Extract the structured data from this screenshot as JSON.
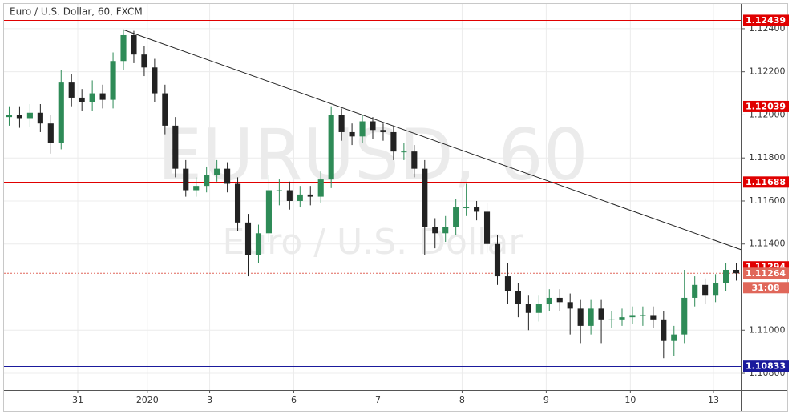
{
  "chart_data": {
    "type": "candlestick",
    "title": "Euro / U.S. Dollar, 60, FXCM",
    "watermark": "EURUSD, 60",
    "watermark_subtitle": "Euro / U.S. Dollar",
    "up_color": "#2e8b57",
    "down_color": "#222222",
    "grid": true,
    "xlim": [
      0,
      71
    ],
    "xticks": [
      {
        "value": 7.1,
        "label": "31"
      },
      {
        "value": 13.8,
        "label": "2020"
      },
      {
        "value": 19.8,
        "label": "3"
      },
      {
        "value": 27.9,
        "label": "6"
      },
      {
        "value": 36.0,
        "label": "7"
      },
      {
        "value": 44.1,
        "label": "8"
      },
      {
        "value": 52.2,
        "label": "9"
      },
      {
        "value": 60.3,
        "label": "10"
      },
      {
        "value": 68.3,
        "label": "13"
      }
    ],
    "ylim": [
      1.10722,
      1.12515
    ],
    "yticks": [
      {
        "value": 1.124,
        "label": "1.12400"
      },
      {
        "value": 1.122,
        "label": "1.12200"
      },
      {
        "value": 1.12,
        "label": "1.12000"
      },
      {
        "value": 1.118,
        "label": "1.11800"
      },
      {
        "value": 1.116,
        "label": "1.11600"
      },
      {
        "value": 1.114,
        "label": "1.11400"
      },
      {
        "value": 1.11,
        "label": "1.11000"
      },
      {
        "value": 1.108,
        "label": "1.10800"
      }
    ],
    "ohlc": [
      [
        1.1199,
        1.1204,
        1.1195,
        1.12
      ],
      [
        1.12,
        1.1204,
        1.1194,
        1.11985
      ],
      [
        1.11985,
        1.1205,
        1.11945,
        1.1201
      ],
      [
        1.1201,
        1.1205,
        1.1192,
        1.1196
      ],
      [
        1.1196,
        1.12,
        1.1182,
        1.1187
      ],
      [
        1.1187,
        1.1221,
        1.1184,
        1.1215
      ],
      [
        1.1215,
        1.1219,
        1.1204,
        1.1208
      ],
      [
        1.1208,
        1.1212,
        1.1202,
        1.1206
      ],
      [
        1.1206,
        1.1216,
        1.1202,
        1.121
      ],
      [
        1.121,
        1.1214,
        1.1203,
        1.1207
      ],
      [
        1.1207,
        1.1229,
        1.1203,
        1.1225
      ],
      [
        1.1225,
        1.12395,
        1.1221,
        1.1237
      ],
      [
        1.1237,
        1.1239,
        1.1224,
        1.1228
      ],
      [
        1.1228,
        1.1232,
        1.1218,
        1.1222
      ],
      [
        1.1222,
        1.1226,
        1.1206,
        1.121
      ],
      [
        1.121,
        1.1214,
        1.1191,
        1.1195
      ],
      [
        1.1195,
        1.1199,
        1.1171,
        1.1175
      ],
      [
        1.1175,
        1.1179,
        1.1162,
        1.1165
      ],
      [
        1.1165,
        1.1171,
        1.1162,
        1.1167
      ],
      [
        1.1167,
        1.1176,
        1.1164,
        1.1172
      ],
      [
        1.1172,
        1.1179,
        1.1169,
        1.1175
      ],
      [
        1.1175,
        1.1178,
        1.1164,
        1.1168
      ],
      [
        1.1168,
        1.1171,
        1.1146,
        1.115
      ],
      [
        1.115,
        1.1154,
        1.1125,
        1.1135
      ],
      [
        1.1135,
        1.1149,
        1.1131,
        1.1145
      ],
      [
        1.1145,
        1.1172,
        1.1141,
        1.1165
      ],
      [
        1.1165,
        1.117,
        1.1158,
        1.1165
      ],
      [
        1.1165,
        1.1169,
        1.1156,
        1.116
      ],
      [
        1.116,
        1.1167,
        1.1157,
        1.1163
      ],
      [
        1.1163,
        1.1167,
        1.1158,
        1.1162
      ],
      [
        1.1162,
        1.1174,
        1.1159,
        1.117
      ],
      [
        1.117,
        1.1204,
        1.1166,
        1.12
      ],
      [
        1.12,
        1.1203,
        1.1188,
        1.1192
      ],
      [
        1.1192,
        1.1196,
        1.1186,
        1.119
      ],
      [
        1.119,
        1.12,
        1.1187,
        1.1197
      ],
      [
        1.1197,
        1.1199,
        1.1189,
        1.1193
      ],
      [
        1.1193,
        1.1196,
        1.1188,
        1.1192
      ],
      [
        1.1192,
        1.1195,
        1.1179,
        1.1183
      ],
      [
        1.1183,
        1.1187,
        1.1179,
        1.1183
      ],
      [
        1.1183,
        1.1186,
        1.1171,
        1.1175
      ],
      [
        1.1175,
        1.1179,
        1.1135,
        1.1148
      ],
      [
        1.1148,
        1.1152,
        1.1138,
        1.1145
      ],
      [
        1.1145,
        1.1153,
        1.1141,
        1.1148
      ],
      [
        1.1148,
        1.1161,
        1.1144,
        1.1157
      ],
      [
        1.1157,
        1.1168,
        1.1153,
        1.1157
      ],
      [
        1.1157,
        1.116,
        1.1151,
        1.1155
      ],
      [
        1.1155,
        1.1159,
        1.1136,
        1.114
      ],
      [
        1.114,
        1.1144,
        1.1121,
        1.1125
      ],
      [
        1.1125,
        1.1131,
        1.1112,
        1.1118
      ],
      [
        1.1118,
        1.1122,
        1.1106,
        1.1112
      ],
      [
        1.1112,
        1.1116,
        1.11,
        1.1108
      ],
      [
        1.1108,
        1.1116,
        1.1104,
        1.1112
      ],
      [
        1.1112,
        1.1119,
        1.1109,
        1.1115
      ],
      [
        1.1115,
        1.1119,
        1.1109,
        1.1113
      ],
      [
        1.1113,
        1.1117,
        1.1098,
        1.111
      ],
      [
        1.111,
        1.1114,
        1.1094,
        1.1102
      ],
      [
        1.1102,
        1.1114,
        1.1098,
        1.111
      ],
      [
        1.111,
        1.1114,
        1.1094,
        1.1105
      ],
      [
        1.1105,
        1.1109,
        1.1101,
        1.1105
      ],
      [
        1.1105,
        1.111,
        1.1102,
        1.1106
      ],
      [
        1.1106,
        1.1111,
        1.1103,
        1.1107
      ],
      [
        1.1107,
        1.1111,
        1.1102,
        1.1107
      ],
      [
        1.1107,
        1.1111,
        1.1101,
        1.1105
      ],
      [
        1.1105,
        1.1109,
        1.1087,
        1.1095
      ],
      [
        1.1095,
        1.1102,
        1.1088,
        1.1098
      ],
      [
        1.1098,
        1.1128,
        1.1094,
        1.1115
      ],
      [
        1.1115,
        1.1125,
        1.1111,
        1.1121
      ],
      [
        1.1121,
        1.1124,
        1.1112,
        1.1116
      ],
      [
        1.1116,
        1.1126,
        1.1113,
        1.1122
      ],
      [
        1.1122,
        1.1131,
        1.1118,
        1.1128
      ],
      [
        1.1128,
        1.1131,
        1.1123,
        1.11264
      ]
    ],
    "levels": [
      {
        "value": 1.12439,
        "color": "#e00000"
      },
      {
        "value": 1.12039,
        "color": "#e00000"
      },
      {
        "value": 1.11688,
        "color": "#e00000"
      },
      {
        "value": 1.11294,
        "color": "#e00000"
      },
      {
        "value": 1.10833,
        "color": "#1a1a9c"
      }
    ],
    "last_price": {
      "value": 1.11264,
      "color": "#e0675a",
      "countdown": "31:08"
    },
    "trendline": {
      "x": [
        11.5,
        71
      ],
      "y": [
        1.12395,
        1.11373
      ],
      "color": "#222222"
    }
  }
}
